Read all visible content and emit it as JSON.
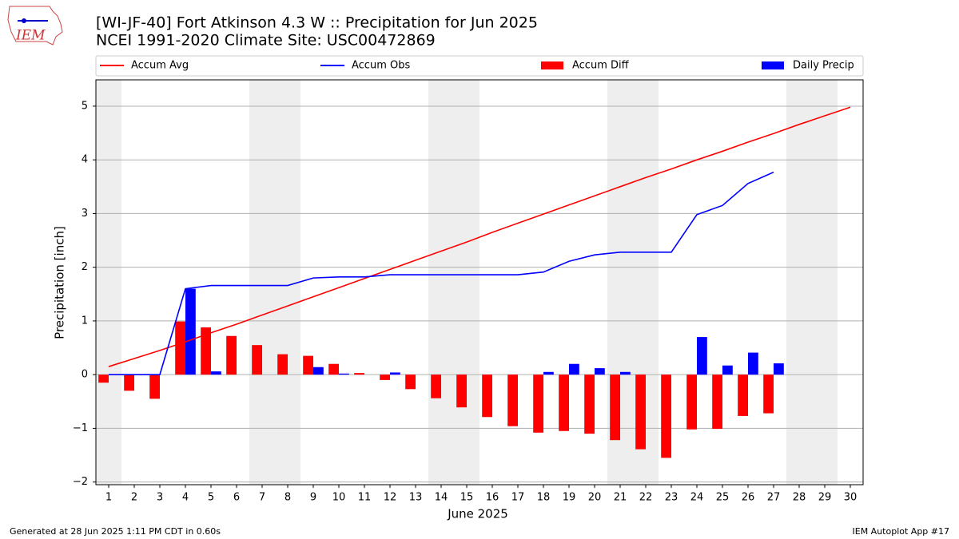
{
  "chart_data": {
    "type": "bar",
    "title": "[WI-JF-40] Fort Atkinson 4.3 W :: Precipitation for Jun 2025",
    "subtitle": "NCEI 1991-2020 Climate Site: USC00472869",
    "logo_text": "IEM",
    "xlabel": "June 2025",
    "ylabel": "Precipitation [inch]",
    "footer_left": "Generated at 28 Jun 2025 1:11 PM CDT in 0.60s",
    "footer_right": "IEM Autoplot App #17",
    "x": [
      1,
      2,
      3,
      4,
      5,
      6,
      7,
      8,
      9,
      10,
      11,
      12,
      13,
      14,
      15,
      16,
      17,
      18,
      19,
      20,
      21,
      22,
      23,
      24,
      25,
      26,
      27,
      28,
      29,
      30
    ],
    "xlim": [
      0.5,
      30.5
    ],
    "xticks": [
      1,
      2,
      3,
      4,
      5,
      6,
      7,
      8,
      9,
      10,
      11,
      12,
      13,
      14,
      15,
      16,
      17,
      18,
      19,
      20,
      21,
      22,
      23,
      24,
      25,
      26,
      27,
      28,
      29,
      30
    ],
    "ylim": [
      -2.05,
      5.49
    ],
    "yticks": [
      {
        "value": -2,
        "label": "−2"
      },
      {
        "value": -1,
        "label": "−1"
      },
      0,
      1,
      2,
      3,
      4,
      5
    ],
    "grid": true,
    "shaded_days": [
      1,
      7,
      8,
      14,
      15,
      21,
      22,
      28,
      29
    ],
    "shade_color": "#eeeeee",
    "series": [
      {
        "name": "Accum Avg",
        "type": "line",
        "color": "#ff0000",
        "values": [
          0.15,
          0.3,
          0.45,
          0.61,
          0.78,
          0.94,
          1.11,
          1.28,
          1.45,
          1.62,
          1.79,
          1.96,
          2.13,
          2.3,
          2.47,
          2.65,
          2.82,
          2.99,
          3.16,
          3.33,
          3.5,
          3.67,
          3.83,
          4.0,
          4.16,
          4.33,
          4.49,
          4.66,
          4.82,
          4.98
        ]
      },
      {
        "name": "Accum Obs",
        "type": "line",
        "color": "#0000ff",
        "values": [
          0,
          0,
          0,
          1.6,
          1.66,
          1.66,
          1.66,
          1.66,
          1.8,
          1.82,
          1.82,
          1.86,
          1.86,
          1.86,
          1.86,
          1.86,
          1.86,
          1.91,
          2.11,
          2.23,
          2.28,
          2.28,
          2.28,
          2.98,
          3.15,
          3.56,
          3.77,
          null,
          null,
          null
        ]
      },
      {
        "name": "Accum Diff",
        "type": "bar",
        "color": "#ff0000",
        "values": [
          -0.15,
          -0.3,
          -0.45,
          0.99,
          0.88,
          0.72,
          0.55,
          0.38,
          0.35,
          0.2,
          0.03,
          -0.1,
          -0.27,
          -0.44,
          -0.61,
          -0.79,
          -0.96,
          -1.08,
          -1.05,
          -1.1,
          -1.22,
          -1.39,
          -1.55,
          -1.02,
          -1.01,
          -0.77,
          -0.72,
          null,
          null,
          null
        ]
      },
      {
        "name": "Daily Precip",
        "type": "bar",
        "color": "#0000ff",
        "values": [
          0,
          0,
          0,
          1.6,
          0.06,
          0,
          0,
          0,
          0.14,
          0.02,
          0,
          0.04,
          0,
          0,
          0,
          0,
          0,
          0.05,
          0.2,
          0.12,
          0.05,
          0,
          0,
          0.7,
          0.17,
          0.41,
          0.21,
          null,
          null,
          null
        ]
      }
    ]
  }
}
